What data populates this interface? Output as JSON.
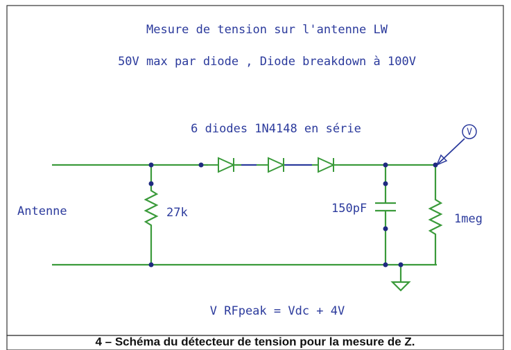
{
  "title": "Mesure de tension sur l'antenne LW",
  "subtitle": "50V max par diode , Diode breakdown à 100V",
  "labels": {
    "diodes": "6 diodes 1N4148 en série",
    "input": "Antenne",
    "r1": "27k",
    "c1": "150pF",
    "r2": "1meg",
    "probe": "V"
  },
  "formula": "V RFpeak = Vdc + 4V",
  "caption": "4 – Schéma du détecteur de tension pour la mesure de Z."
}
